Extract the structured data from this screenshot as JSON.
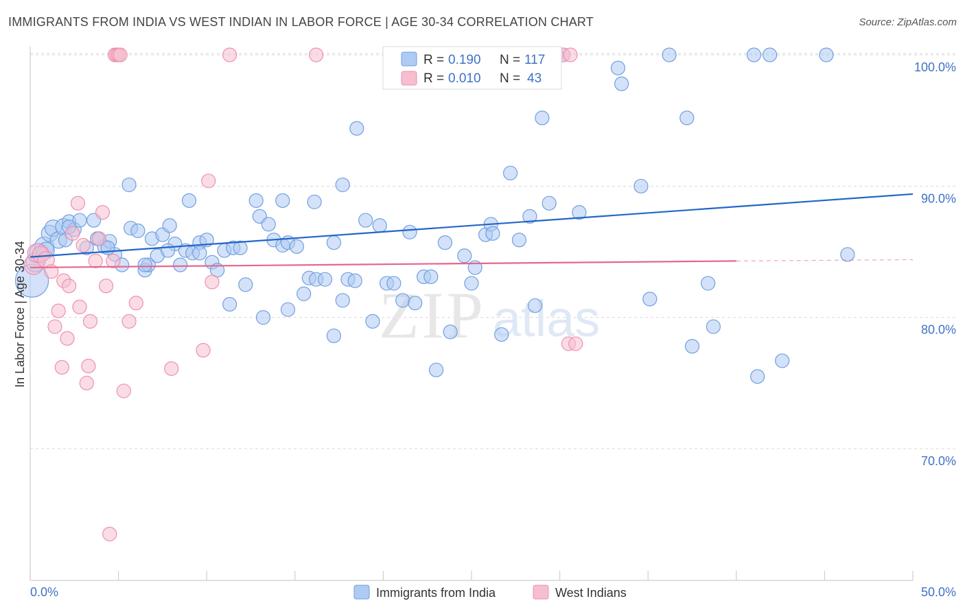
{
  "title": "IMMIGRANTS FROM INDIA VS WEST INDIAN IN LABOR FORCE | AGE 30-34 CORRELATION CHART",
  "source": "Source: ZipAtlas.com",
  "colors": {
    "india_fill": "#aecbf3",
    "india_stroke": "#6f9fe0",
    "india_line": "#2266c8",
    "westindian_fill": "#f6bfd0",
    "westindian_stroke": "#ee8fae",
    "westindian_line": "#e4668f",
    "grid": "#d8d8d8",
    "axis_text": "#3f72c4"
  },
  "legend": {
    "india": {
      "r_label": "R = ",
      "r_value": "0.190",
      "n_label": "N = ",
      "n_value": "117"
    },
    "westindian": {
      "r_label": "R = ",
      "r_value": "0.010",
      "n_label": "N = ",
      "n_value": "43"
    }
  },
  "chart_data": {
    "type": "scatter",
    "title": "IMMIGRANTS FROM INDIA VS WEST INDIAN IN LABOR FORCE | AGE 30-34 CORRELATION CHART",
    "xlabel": "",
    "ylabel": "In Labor Force | Age 30-34",
    "xlim": [
      0,
      50
    ],
    "ylim": [
      61.5,
      101
    ],
    "x_tick_labels": [
      "0.0%",
      "50.0%"
    ],
    "y_ticks": [
      70,
      80,
      90,
      100
    ],
    "y_tick_labels": [
      "70.0%",
      "80.0%",
      "90.0%",
      "100.0%"
    ],
    "grid": true,
    "legend_position": "top-center",
    "watermark": {
      "zip": "ZIP",
      "atlas": "atlas"
    },
    "series": [
      {
        "name": "Immigrants from India",
        "trend": {
          "x": [
            0,
            50
          ],
          "y": [
            84.6,
            89.4
          ]
        },
        "points": [
          [
            0.1,
            82.8,
            24
          ],
          [
            0.3,
            84.2,
            14
          ],
          [
            0.5,
            84.9,
            14
          ],
          [
            0.8,
            85.4,
            14
          ],
          [
            0.9,
            85.1,
            12
          ],
          [
            1.1,
            86.4,
            12
          ],
          [
            1.3,
            86.8,
            12
          ],
          [
            1.6,
            85.9,
            12
          ],
          [
            1.9,
            86.9,
            12
          ],
          [
            2.0,
            85.9,
            10
          ],
          [
            2.2,
            87.3,
            10
          ],
          [
            2.5,
            86.7,
            10
          ],
          [
            2.8,
            87.4,
            10
          ],
          [
            3.2,
            85.3,
            10
          ],
          [
            3.6,
            87.4,
            10
          ],
          [
            3.9,
            86.0,
            10
          ],
          [
            4.2,
            85.4,
            10
          ],
          [
            4.5,
            85.8,
            10
          ],
          [
            4.8,
            84.8,
            10
          ],
          [
            5.2,
            84.0,
            10
          ],
          [
            5.7,
            86.8,
            10
          ],
          [
            6.1,
            86.6,
            10
          ],
          [
            6.5,
            83.6,
            10
          ],
          [
            6.7,
            84.0,
            10
          ],
          [
            6.9,
            86.0,
            10
          ],
          [
            7.2,
            84.7,
            10
          ],
          [
            7.5,
            86.3,
            10
          ],
          [
            7.9,
            87.0,
            10
          ],
          [
            8.2,
            85.6,
            10
          ],
          [
            8.5,
            84.0,
            10
          ],
          [
            8.8,
            85.1,
            10
          ],
          [
            9.2,
            84.9,
            10
          ],
          [
            9.6,
            85.7,
            10
          ],
          [
            10.0,
            85.9,
            10
          ],
          [
            10.3,
            84.2,
            10
          ],
          [
            10.6,
            83.6,
            10
          ],
          [
            11.0,
            85.1,
            10
          ],
          [
            11.5,
            85.3,
            10
          ],
          [
            11.9,
            85.3,
            10
          ],
          [
            12.2,
            82.5,
            10
          ],
          [
            12.8,
            88.9,
            10
          ],
          [
            13.0,
            87.7,
            10
          ],
          [
            13.5,
            87.1,
            10
          ],
          [
            13.8,
            85.9,
            10
          ],
          [
            14.3,
            85.5,
            10
          ],
          [
            14.6,
            85.7,
            10
          ],
          [
            15.1,
            85.4,
            10
          ],
          [
            15.5,
            81.8,
            10
          ],
          [
            15.8,
            83.0,
            10
          ],
          [
            16.2,
            82.9,
            10
          ],
          [
            16.7,
            82.9,
            10
          ],
          [
            17.2,
            85.7,
            10
          ],
          [
            17.7,
            81.3,
            10
          ],
          [
            18.0,
            82.9,
            10
          ],
          [
            18.4,
            82.8,
            10
          ],
          [
            19.0,
            87.4,
            10
          ],
          [
            19.4,
            79.7,
            10
          ],
          [
            19.8,
            87.0,
            10
          ],
          [
            20.2,
            82.6,
            10
          ],
          [
            20.6,
            82.6,
            10
          ],
          [
            21.1,
            81.3,
            10
          ],
          [
            21.5,
            86.5,
            10
          ],
          [
            21.8,
            81.1,
            10
          ],
          [
            22.3,
            83.1,
            10
          ],
          [
            22.7,
            83.1,
            10
          ],
          [
            23.0,
            76.0,
            10
          ],
          [
            23.5,
            85.7,
            10
          ],
          [
            23.8,
            78.9,
            10
          ],
          [
            24.6,
            84.7,
            10
          ],
          [
            25.0,
            82.6,
            10
          ],
          [
            25.2,
            83.8,
            10
          ],
          [
            25.8,
            86.3,
            10
          ],
          [
            26.1,
            87.1,
            10
          ],
          [
            26.2,
            86.4,
            10
          ],
          [
            26.7,
            78.7,
            10
          ],
          [
            27.7,
            85.9,
            10
          ],
          [
            28.3,
            87.7,
            10
          ],
          [
            28.6,
            80.9,
            10
          ],
          [
            29.0,
            95.2,
            10
          ],
          [
            29.4,
            88.7,
            10
          ],
          [
            30.2,
            100.0,
            10
          ],
          [
            31.1,
            88.0,
            10
          ],
          [
            33.3,
            99.0,
            10
          ],
          [
            33.5,
            97.8,
            10
          ],
          [
            34.6,
            90.0,
            10
          ],
          [
            35.1,
            81.4,
            10
          ],
          [
            36.2,
            100.0,
            10
          ],
          [
            37.2,
            95.2,
            10
          ],
          [
            37.5,
            77.8,
            10
          ],
          [
            38.4,
            82.6,
            10
          ],
          [
            38.7,
            79.3,
            10
          ],
          [
            41.0,
            100.0,
            10
          ],
          [
            41.2,
            75.5,
            10
          ],
          [
            41.9,
            100.0,
            10
          ],
          [
            42.6,
            76.7,
            10
          ],
          [
            45.1,
            100.0,
            10
          ],
          [
            46.3,
            84.8,
            10
          ],
          [
            18.5,
            94.4,
            10
          ],
          [
            17.7,
            90.1,
            10
          ],
          [
            16.1,
            88.8,
            10
          ],
          [
            14.3,
            88.9,
            10
          ],
          [
            11.3,
            81.0,
            10
          ],
          [
            13.2,
            80.0,
            10
          ],
          [
            14.6,
            80.6,
            10
          ],
          [
            5.6,
            90.1,
            10
          ],
          [
            21.5,
            100.0,
            10
          ],
          [
            23.2,
            100.0,
            10
          ],
          [
            27.2,
            91.0,
            10
          ],
          [
            17.2,
            78.6,
            10
          ],
          [
            6.5,
            84.0,
            10
          ],
          [
            7.8,
            85.1,
            10
          ],
          [
            9.6,
            84.9,
            10
          ],
          [
            4.4,
            85.3,
            10
          ],
          [
            3.8,
            86.0,
            10
          ],
          [
            2.2,
            86.9,
            10
          ],
          [
            0.7,
            84.8,
            10
          ],
          [
            9.0,
            88.9,
            10
          ]
        ]
      },
      {
        "name": "West Indians",
        "trend": {
          "x": [
            0,
            40
          ],
          "y": [
            83.8,
            84.3
          ]
        },
        "trend_dashed": {
          "x": [
            40,
            50
          ],
          "y": [
            84.3,
            84.4
          ]
        },
        "points": [
          [
            0.2,
            84.0,
            14
          ],
          [
            0.4,
            84.9,
            14
          ],
          [
            0.6,
            84.8,
            12
          ],
          [
            0.9,
            84.4,
            12
          ],
          [
            1.2,
            83.5,
            10
          ],
          [
            1.4,
            79.3,
            10
          ],
          [
            1.6,
            80.5,
            10
          ],
          [
            1.8,
            76.2,
            10
          ],
          [
            1.9,
            82.8,
            10
          ],
          [
            2.1,
            78.4,
            10
          ],
          [
            2.2,
            82.4,
            10
          ],
          [
            2.4,
            86.4,
            10
          ],
          [
            2.7,
            88.7,
            10
          ],
          [
            2.8,
            80.8,
            10
          ],
          [
            3.0,
            85.5,
            10
          ],
          [
            3.2,
            75.0,
            10
          ],
          [
            3.3,
            76.3,
            10
          ],
          [
            3.4,
            79.7,
            10
          ],
          [
            3.7,
            84.3,
            10
          ],
          [
            3.9,
            86.0,
            10
          ],
          [
            4.1,
            88.0,
            10
          ],
          [
            4.3,
            82.4,
            10
          ],
          [
            4.5,
            63.5,
            10
          ],
          [
            4.7,
            84.3,
            10
          ],
          [
            4.8,
            100.0,
            10
          ],
          [
            4.9,
            100.0,
            10
          ],
          [
            5.0,
            100.0,
            10
          ],
          [
            5.1,
            100.0,
            10
          ],
          [
            5.3,
            74.4,
            10
          ],
          [
            5.6,
            79.7,
            10
          ],
          [
            6.0,
            81.1,
            10
          ],
          [
            8.0,
            76.1,
            10
          ],
          [
            9.8,
            77.5,
            10
          ],
          [
            10.1,
            90.4,
            10
          ],
          [
            10.3,
            82.7,
            10
          ],
          [
            11.3,
            100.0,
            10
          ],
          [
            16.2,
            100.0,
            10
          ],
          [
            29.4,
            100.0,
            10
          ],
          [
            29.8,
            100.0,
            10
          ],
          [
            30.2,
            100.0,
            10
          ],
          [
            30.6,
            100.0,
            10
          ],
          [
            30.5,
            78.0,
            10
          ],
          [
            30.9,
            78.0,
            10
          ]
        ]
      }
    ]
  },
  "bottom_legend": [
    {
      "label": "Immigrants from India"
    },
    {
      "label": "West Indians"
    }
  ]
}
